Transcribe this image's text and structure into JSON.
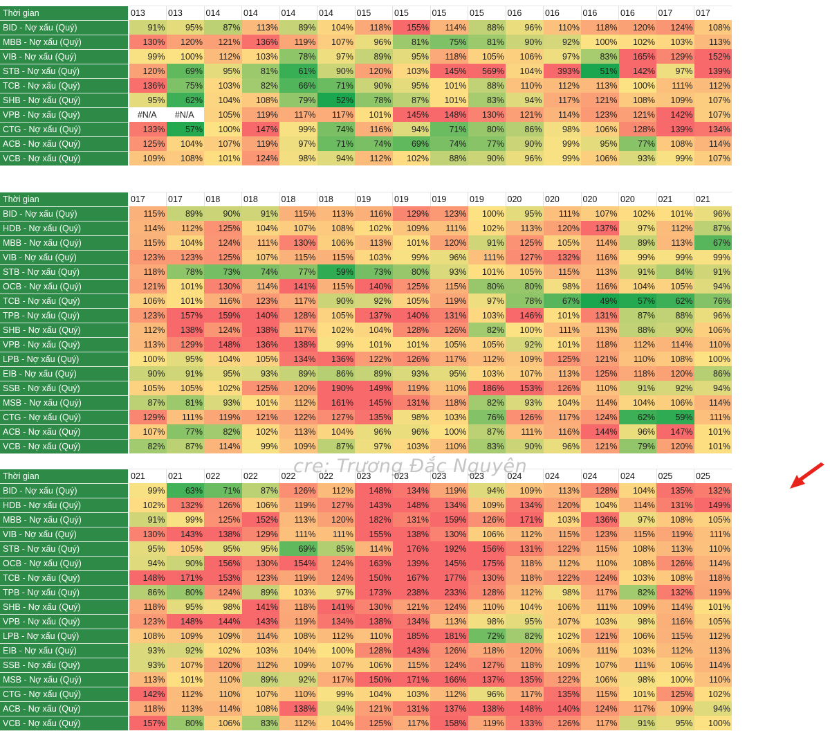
{
  "watermark": "cre: Trương Đắc Nguyên",
  "annotation": {
    "arrow_color": "#e8231b",
    "points_to": "BID 025 last column 132%"
  },
  "colors": {
    "label_bg": "#2e8b47",
    "label_text": "#ffffff",
    "low": "#1aa64e",
    "mid": "#fde283",
    "high": "#f8696b"
  },
  "tables": [
    {
      "header_label": "Thời gian",
      "periods": [
        "013",
        "013",
        "014",
        "014",
        "014",
        "014",
        "015",
        "015",
        "015",
        "015",
        "016",
        "016",
        "016",
        "016",
        "017",
        "017"
      ],
      "rows": [
        {
          "label": "BID - Nợ xấu (Quý)",
          "values": [
            "91%",
            "95%",
            "87%",
            "113%",
            "89%",
            "104%",
            "118%",
            "155%",
            "114%",
            "88%",
            "96%",
            "110%",
            "118%",
            "120%",
            "124%",
            "108%"
          ]
        },
        {
          "label": "MBB - Nợ xấu (Quý)",
          "values": [
            "130%",
            "120%",
            "121%",
            "136%",
            "119%",
            "107%",
            "96%",
            "81%",
            "75%",
            "81%",
            "90%",
            "92%",
            "100%",
            "102%",
            "103%",
            "113%"
          ]
        },
        {
          "label": "VIB - Nợ xấu (Quý)",
          "values": [
            "99%",
            "100%",
            "112%",
            "103%",
            "78%",
            "97%",
            "89%",
            "95%",
            "118%",
            "105%",
            "106%",
            "97%",
            "83%",
            "165%",
            "129%",
            "152%"
          ]
        },
        {
          "label": "STB - Nợ xấu (Quý)",
          "values": [
            "120%",
            "69%",
            "95%",
            "81%",
            "61%",
            "90%",
            "120%",
            "103%",
            "145%",
            "569%",
            "104%",
            "393%",
            "51%",
            "142%",
            "97%",
            "139%"
          ]
        },
        {
          "label": "TCB - Nợ xấu (Quý)",
          "values": [
            "136%",
            "75%",
            "103%",
            "82%",
            "66%",
            "71%",
            "90%",
            "95%",
            "101%",
            "88%",
            "110%",
            "112%",
            "113%",
            "100%",
            "111%",
            "112%"
          ]
        },
        {
          "label": "SHB - Nợ xấu (Quý)",
          "values": [
            "95%",
            "62%",
            "104%",
            "108%",
            "79%",
            "52%",
            "78%",
            "87%",
            "101%",
            "83%",
            "94%",
            "117%",
            "121%",
            "108%",
            "109%",
            "107%"
          ]
        },
        {
          "label": "VPB - Nợ xấu (Quý)",
          "values": [
            "#N/A",
            "#N/A",
            "105%",
            "119%",
            "117%",
            "117%",
            "101%",
            "145%",
            "148%",
            "130%",
            "121%",
            "114%",
            "123%",
            "121%",
            "142%",
            "107%"
          ]
        },
        {
          "label": "CTG - Nợ xấu (Quý)",
          "values": [
            "133%",
            "57%",
            "100%",
            "147%",
            "99%",
            "74%",
            "116%",
            "94%",
            "71%",
            "80%",
            "86%",
            "98%",
            "106%",
            "128%",
            "139%",
            "134%"
          ]
        },
        {
          "label": "ACB - Nợ xấu (Quý)",
          "values": [
            "125%",
            "104%",
            "107%",
            "119%",
            "97%",
            "71%",
            "74%",
            "69%",
            "74%",
            "77%",
            "90%",
            "99%",
            "95%",
            "77%",
            "108%",
            "114%"
          ]
        },
        {
          "label": "VCB - Nợ xấu (Quý)",
          "values": [
            "109%",
            "108%",
            "101%",
            "124%",
            "98%",
            "94%",
            "112%",
            "102%",
            "88%",
            "90%",
            "96%",
            "99%",
            "106%",
            "93%",
            "99%",
            "107%"
          ]
        }
      ]
    },
    {
      "header_label": "Thời gian",
      "periods": [
        "017",
        "017",
        "018",
        "018",
        "018",
        "018",
        "019",
        "019",
        "019",
        "019",
        "020",
        "020",
        "020",
        "020",
        "021",
        "021"
      ],
      "rows": [
        {
          "label": "BID - Nợ xấu (Quý)",
          "values": [
            "115%",
            "89%",
            "90%",
            "91%",
            "115%",
            "113%",
            "116%",
            "129%",
            "123%",
            "100%",
            "95%",
            "111%",
            "107%",
            "102%",
            "101%",
            "96%"
          ]
        },
        {
          "label": "HDB - Nợ xấu (Quý)",
          "values": [
            "114%",
            "112%",
            "125%",
            "104%",
            "107%",
            "108%",
            "102%",
            "109%",
            "111%",
            "102%",
            "113%",
            "120%",
            "137%",
            "97%",
            "112%",
            "87%"
          ]
        },
        {
          "label": "MBB - Nợ xấu (Quý)",
          "values": [
            "115%",
            "104%",
            "124%",
            "111%",
            "130%",
            "106%",
            "113%",
            "101%",
            "120%",
            "91%",
            "125%",
            "105%",
            "114%",
            "89%",
            "113%",
            "67%"
          ]
        },
        {
          "label": "VIB - Nợ xấu (Quý)",
          "values": [
            "123%",
            "123%",
            "125%",
            "107%",
            "115%",
            "115%",
            "103%",
            "99%",
            "96%",
            "111%",
            "127%",
            "132%",
            "116%",
            "99%",
            "99%",
            "99%"
          ]
        },
        {
          "label": "STB - Nợ xấu (Quý)",
          "values": [
            "118%",
            "78%",
            "73%",
            "74%",
            "77%",
            "59%",
            "73%",
            "80%",
            "93%",
            "101%",
            "105%",
            "115%",
            "113%",
            "91%",
            "84%",
            "91%"
          ]
        },
        {
          "label": "OCB - Nợ xấu (Quý)",
          "values": [
            "121%",
            "101%",
            "130%",
            "114%",
            "141%",
            "115%",
            "140%",
            "125%",
            "115%",
            "80%",
            "80%",
            "98%",
            "116%",
            "104%",
            "105%",
            "94%"
          ]
        },
        {
          "label": "TCB - Nợ xấu (Quý)",
          "values": [
            "106%",
            "101%",
            "116%",
            "123%",
            "117%",
            "90%",
            "92%",
            "105%",
            "119%",
            "97%",
            "78%",
            "67%",
            "49%",
            "57%",
            "62%",
            "76%"
          ]
        },
        {
          "label": "TPB - Nợ xấu (Quý)",
          "values": [
            "123%",
            "157%",
            "159%",
            "140%",
            "128%",
            "105%",
            "137%",
            "140%",
            "131%",
            "103%",
            "146%",
            "101%",
            "131%",
            "87%",
            "88%",
            "96%"
          ]
        },
        {
          "label": "SHB - Nợ xấu (Quý)",
          "values": [
            "112%",
            "138%",
            "124%",
            "138%",
            "117%",
            "102%",
            "104%",
            "128%",
            "126%",
            "82%",
            "100%",
            "111%",
            "113%",
            "88%",
            "90%",
            "106%"
          ]
        },
        {
          "label": "VPB - Nợ xấu (Quý)",
          "values": [
            "113%",
            "129%",
            "148%",
            "136%",
            "138%",
            "99%",
            "101%",
            "101%",
            "105%",
            "105%",
            "92%",
            "101%",
            "118%",
            "112%",
            "114%",
            "110%"
          ]
        },
        {
          "label": "LPB - Nợ xấu (Quý)",
          "values": [
            "100%",
            "95%",
            "104%",
            "105%",
            "134%",
            "136%",
            "122%",
            "126%",
            "117%",
            "112%",
            "109%",
            "125%",
            "121%",
            "110%",
            "108%",
            "100%"
          ]
        },
        {
          "label": "EIB - Nợ xấu (Quý)",
          "values": [
            "90%",
            "91%",
            "95%",
            "93%",
            "89%",
            "86%",
            "89%",
            "93%",
            "95%",
            "103%",
            "107%",
            "113%",
            "125%",
            "118%",
            "120%",
            "86%"
          ]
        },
        {
          "label": "SSB - Nợ xấu (Quý)",
          "values": [
            "105%",
            "105%",
            "102%",
            "125%",
            "120%",
            "190%",
            "149%",
            "119%",
            "110%",
            "186%",
            "153%",
            "126%",
            "110%",
            "91%",
            "92%",
            "94%"
          ]
        },
        {
          "label": "MSB - Nợ xấu (Quý)",
          "values": [
            "87%",
            "81%",
            "93%",
            "101%",
            "112%",
            "161%",
            "145%",
            "131%",
            "118%",
            "82%",
            "93%",
            "104%",
            "114%",
            "104%",
            "106%",
            "114%"
          ]
        },
        {
          "label": "CTG - Nợ xấu (Quý)",
          "values": [
            "129%",
            "111%",
            "119%",
            "121%",
            "122%",
            "127%",
            "135%",
            "98%",
            "103%",
            "76%",
            "126%",
            "117%",
            "124%",
            "62%",
            "59%",
            "111%"
          ]
        },
        {
          "label": "ACB - Nợ xấu (Quý)",
          "values": [
            "107%",
            "77%",
            "82%",
            "102%",
            "113%",
            "104%",
            "96%",
            "96%",
            "100%",
            "87%",
            "111%",
            "116%",
            "144%",
            "96%",
            "147%",
            "101%"
          ]
        },
        {
          "label": "VCB - Nợ xấu (Quý)",
          "values": [
            "82%",
            "87%",
            "114%",
            "99%",
            "109%",
            "87%",
            "97%",
            "103%",
            "110%",
            "83%",
            "90%",
            "96%",
            "121%",
            "79%",
            "120%",
            "101%"
          ]
        }
      ]
    },
    {
      "header_label": "Thời gian",
      "periods": [
        "021",
        "021",
        "022",
        "022",
        "022",
        "022",
        "023",
        "023",
        "023",
        "023",
        "024",
        "024",
        "024",
        "024",
        "025",
        "025"
      ],
      "rows": [
        {
          "label": "BID - Nợ xấu (Quý)",
          "values": [
            "99%",
            "63%",
            "71%",
            "87%",
            "126%",
            "112%",
            "148%",
            "134%",
            "119%",
            "94%",
            "109%",
            "113%",
            "128%",
            "104%",
            "135%",
            "132%"
          ]
        },
        {
          "label": "HDB - Nợ xấu (Quý)",
          "values": [
            "102%",
            "132%",
            "126%",
            "106%",
            "119%",
            "127%",
            "143%",
            "148%",
            "134%",
            "109%",
            "134%",
            "120%",
            "104%",
            "114%",
            "131%",
            "149%"
          ]
        },
        {
          "label": "MBB - Nợ xấu (Quý)",
          "values": [
            "91%",
            "99%",
            "125%",
            "152%",
            "113%",
            "120%",
            "182%",
            "131%",
            "159%",
            "126%",
            "171%",
            "103%",
            "136%",
            "97%",
            "108%",
            "105%"
          ]
        },
        {
          "label": "VIB - Nợ xấu (Quý)",
          "values": [
            "130%",
            "143%",
            "138%",
            "129%",
            "111%",
            "111%",
            "155%",
            "138%",
            "130%",
            "106%",
            "112%",
            "115%",
            "123%",
            "115%",
            "119%",
            "111%"
          ]
        },
        {
          "label": "STB - Nợ xấu (Quý)",
          "values": [
            "95%",
            "105%",
            "95%",
            "95%",
            "69%",
            "85%",
            "114%",
            "176%",
            "192%",
            "156%",
            "131%",
            "122%",
            "115%",
            "108%",
            "113%",
            "110%"
          ]
        },
        {
          "label": "OCB - Nợ xấu (Quý)",
          "values": [
            "94%",
            "90%",
            "156%",
            "130%",
            "154%",
            "124%",
            "163%",
            "139%",
            "145%",
            "175%",
            "118%",
            "112%",
            "110%",
            "108%",
            "126%",
            "114%"
          ]
        },
        {
          "label": "TCB - Nợ xấu (Quý)",
          "values": [
            "148%",
            "171%",
            "153%",
            "123%",
            "119%",
            "124%",
            "150%",
            "167%",
            "177%",
            "130%",
            "118%",
            "122%",
            "124%",
            "103%",
            "108%",
            "118%"
          ]
        },
        {
          "label": "TPB - Nợ xấu (Quý)",
          "values": [
            "86%",
            "80%",
            "124%",
            "89%",
            "103%",
            "97%",
            "173%",
            "238%",
            "233%",
            "128%",
            "112%",
            "98%",
            "117%",
            "82%",
            "132%",
            "119%"
          ]
        },
        {
          "label": "SHB - Nợ xấu (Quý)",
          "values": [
            "118%",
            "95%",
            "98%",
            "141%",
            "118%",
            "141%",
            "130%",
            "121%",
            "124%",
            "110%",
            "104%",
            "106%",
            "111%",
            "109%",
            "114%",
            "101%"
          ]
        },
        {
          "label": "VPB - Nợ xấu (Quý)",
          "values": [
            "123%",
            "148%",
            "144%",
            "143%",
            "119%",
            "134%",
            "138%",
            "134%",
            "113%",
            "98%",
            "95%",
            "107%",
            "103%",
            "98%",
            "116%",
            "105%"
          ]
        },
        {
          "label": "LPB - Nợ xấu (Quý)",
          "values": [
            "108%",
            "109%",
            "109%",
            "114%",
            "108%",
            "112%",
            "110%",
            "185%",
            "181%",
            "72%",
            "82%",
            "102%",
            "121%",
            "106%",
            "115%",
            "112%"
          ]
        },
        {
          "label": "EIB - Nợ xấu (Quý)",
          "values": [
            "93%",
            "92%",
            "102%",
            "103%",
            "104%",
            "100%",
            "128%",
            "143%",
            "126%",
            "118%",
            "120%",
            "106%",
            "111%",
            "103%",
            "112%",
            "113%"
          ]
        },
        {
          "label": "SSB - Nợ xấu (Quý)",
          "values": [
            "93%",
            "107%",
            "120%",
            "112%",
            "109%",
            "107%",
            "106%",
            "115%",
            "124%",
            "127%",
            "118%",
            "109%",
            "107%",
            "111%",
            "106%",
            "114%"
          ]
        },
        {
          "label": "MSB - Nợ xấu (Quý)",
          "values": [
            "113%",
            "101%",
            "110%",
            "89%",
            "92%",
            "117%",
            "150%",
            "171%",
            "166%",
            "137%",
            "135%",
            "122%",
            "106%",
            "98%",
            "100%",
            "110%"
          ]
        },
        {
          "label": "CTG - Nợ xấu (Quý)",
          "values": [
            "142%",
            "112%",
            "110%",
            "107%",
            "110%",
            "99%",
            "104%",
            "103%",
            "112%",
            "96%",
            "117%",
            "135%",
            "115%",
            "101%",
            "125%",
            "102%"
          ]
        },
        {
          "label": "ACB - Nợ xấu (Quý)",
          "values": [
            "118%",
            "113%",
            "114%",
            "108%",
            "138%",
            "94%",
            "121%",
            "131%",
            "137%",
            "138%",
            "148%",
            "140%",
            "124%",
            "117%",
            "109%",
            "94%"
          ]
        },
        {
          "label": "VCB - Nợ xấu (Quý)",
          "values": [
            "157%",
            "80%",
            "106%",
            "83%",
            "112%",
            "104%",
            "125%",
            "117%",
            "158%",
            "119%",
            "133%",
            "126%",
            "117%",
            "91%",
            "95%",
            "100%"
          ]
        }
      ]
    }
  ]
}
